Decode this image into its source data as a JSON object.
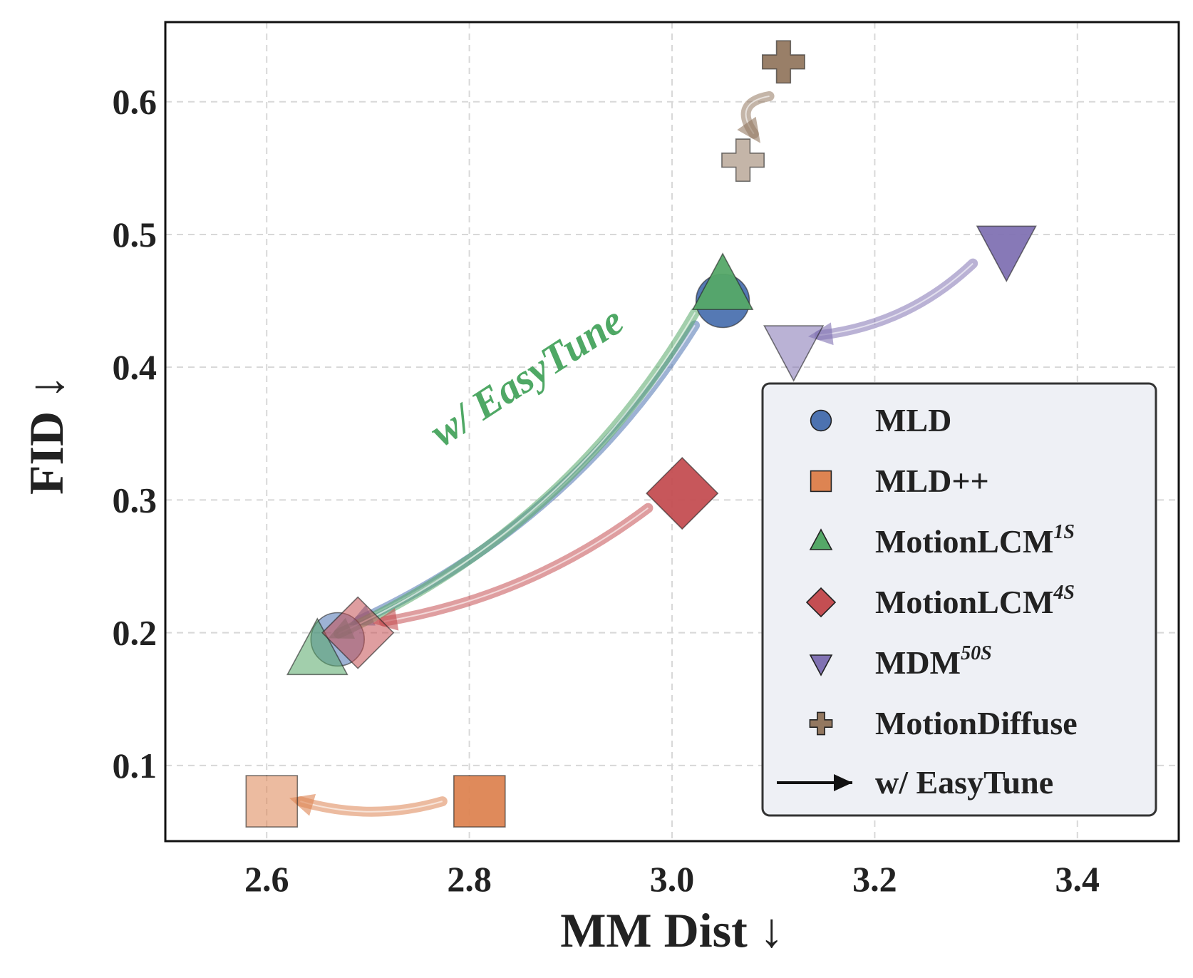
{
  "chart_data": {
    "type": "scatter",
    "title": "",
    "xlabel": "MM Dist ↓",
    "ylabel": "FID ↓",
    "xlim": [
      2.5,
      3.5
    ],
    "ylim": [
      0.043,
      0.66
    ],
    "xticks": [
      "2.6",
      "2.8",
      "3.0",
      "3.2",
      "3.4"
    ],
    "xtick_values": [
      2.6,
      2.8,
      3.0,
      3.2,
      3.4
    ],
    "yticks": [
      "0.1",
      "0.2",
      "0.3",
      "0.4",
      "0.5",
      "0.6"
    ],
    "ytick_values": [
      0.1,
      0.2,
      0.3,
      0.4,
      0.5,
      0.6
    ],
    "grid": true,
    "legend_position": "lower-right",
    "annotation": {
      "text": "w/ EasyTune",
      "color": "#4fa865"
    },
    "series": [
      {
        "name": "MLD",
        "sup": "",
        "marker": "circle",
        "color": "#4c72b0",
        "before": {
          "x": 3.05,
          "y": 0.45
        },
        "after": {
          "x": 2.67,
          "y": 0.195
        }
      },
      {
        "name": "MLD++",
        "sup": "",
        "marker": "square",
        "color": "#dd8452",
        "before": {
          "x": 2.81,
          "y": 0.073
        },
        "after": {
          "x": 2.605,
          "y": 0.073
        }
      },
      {
        "name": "MotionLCM",
        "sup": "1S",
        "marker": "triangle-up",
        "color": "#55a868",
        "before": {
          "x": 3.05,
          "y": 0.46
        },
        "after": {
          "x": 2.65,
          "y": 0.185
        }
      },
      {
        "name": "MotionLCM",
        "sup": "4S",
        "marker": "diamond",
        "color": "#c44e52",
        "before": {
          "x": 3.01,
          "y": 0.305
        },
        "after": {
          "x": 2.69,
          "y": 0.2
        }
      },
      {
        "name": "MDM",
        "sup": "50S",
        "marker": "triangle-down",
        "color": "#8172b3",
        "before": {
          "x": 3.33,
          "y": 0.49
        },
        "after": {
          "x": 3.12,
          "y": 0.415
        }
      },
      {
        "name": "MotionDiffuse",
        "sup": "",
        "marker": "plus",
        "color": "#937860",
        "before": {
          "x": 3.11,
          "y": 0.63
        },
        "after": {
          "x": 3.07,
          "y": 0.556
        }
      }
    ],
    "legend_arrow_label": "w/ EasyTune"
  }
}
